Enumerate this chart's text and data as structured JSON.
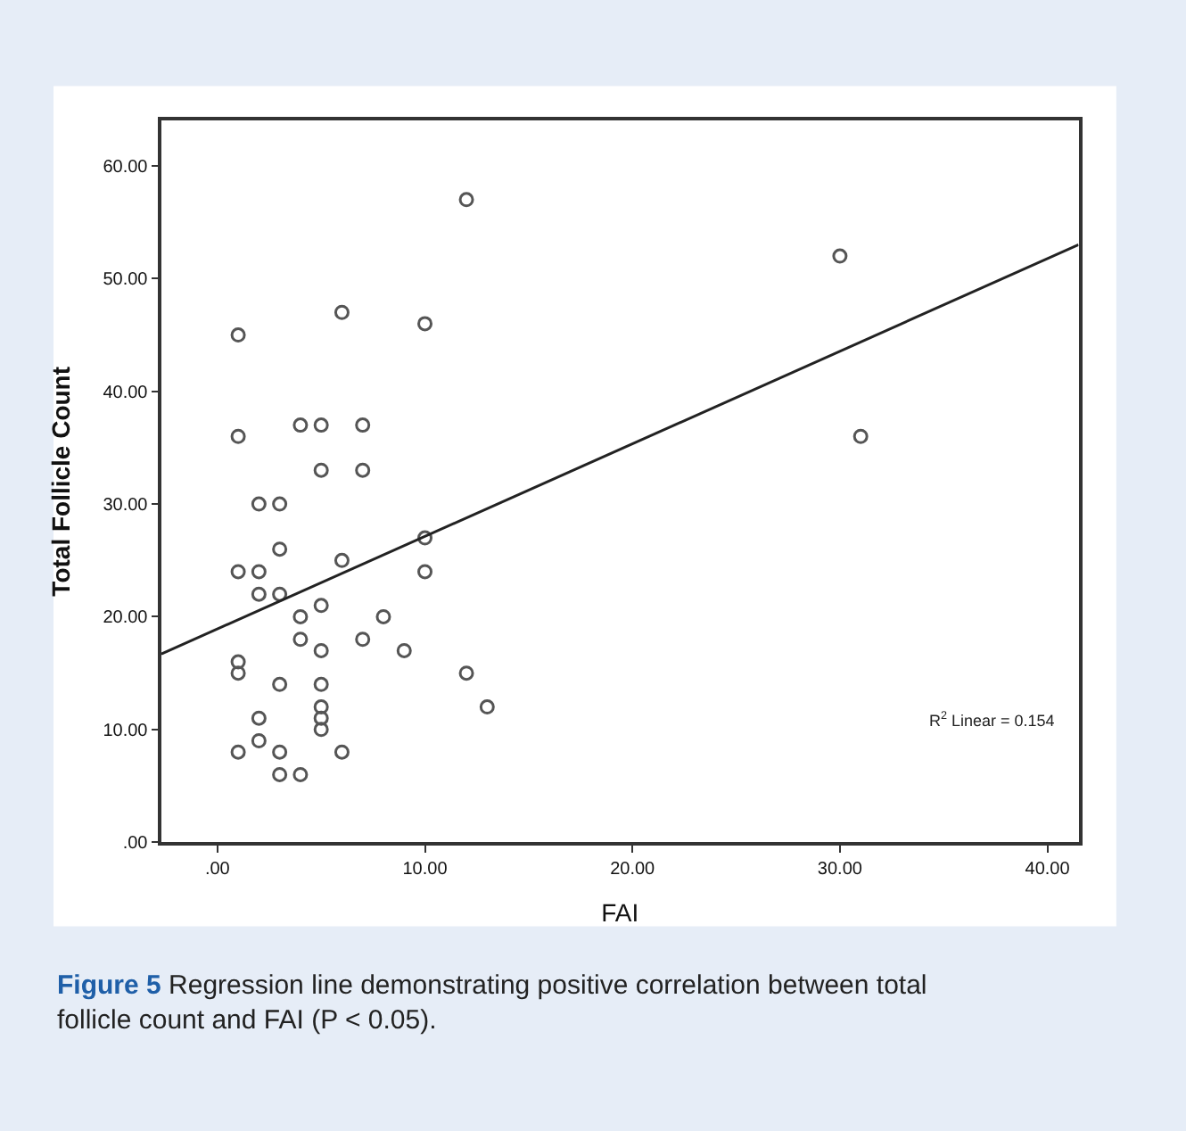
{
  "chart_data": {
    "type": "scatter",
    "xlabel": "FAI",
    "ylabel": "Total Follicle Count",
    "xlim": [
      -2.7,
      41.5
    ],
    "ylim": [
      0,
      64
    ],
    "xticks": [
      {
        "value": 0,
        "label": ".00"
      },
      {
        "value": 10,
        "label": "10.00"
      },
      {
        "value": 20,
        "label": "20.00"
      },
      {
        "value": 30,
        "label": "30.00"
      },
      {
        "value": 40,
        "label": "40.00"
      }
    ],
    "yticks": [
      {
        "value": 0,
        "label": ".00"
      },
      {
        "value": 10,
        "label": "10.00"
      },
      {
        "value": 20,
        "label": "20.00"
      },
      {
        "value": 30,
        "label": "30.00"
      },
      {
        "value": 40,
        "label": "40.00"
      },
      {
        "value": 50,
        "label": "50.00"
      },
      {
        "value": 60,
        "label": "60.00"
      }
    ],
    "series": [
      {
        "marker": "circle",
        "color": "#555555",
        "x": [
          1,
          1,
          1,
          1,
          1,
          1,
          2,
          2,
          2,
          2,
          2,
          3,
          3,
          3,
          3,
          3,
          3,
          4,
          4,
          4,
          4,
          5,
          5,
          5,
          5,
          5,
          5,
          5,
          5,
          6,
          6,
          6,
          7,
          7,
          7,
          8,
          9,
          10,
          10,
          10,
          12,
          12,
          13,
          30,
          31
        ],
        "values": [
          45,
          36,
          24,
          16,
          15,
          8,
          30,
          24,
          22,
          11,
          9,
          30,
          26,
          22,
          14,
          8,
          6,
          37,
          20,
          18,
          6,
          37,
          33,
          21,
          17,
          14,
          12,
          11,
          10,
          47,
          25,
          8,
          37,
          33,
          18,
          20,
          17,
          46,
          27,
          24,
          57,
          15,
          12,
          52,
          36
        ]
      },
      {
        "type": "line",
        "marker": "none",
        "color": "#222222",
        "x": [
          -2.7,
          41.5
        ],
        "values": [
          16.7,
          53
        ]
      }
    ],
    "annotations": [
      "R$^{2}$ Linear = 0.154",
      "Figure 5 Regression line demonstrating positive correlation between total follicle count and FAI (P < 0.05)."
    ]
  }
}
